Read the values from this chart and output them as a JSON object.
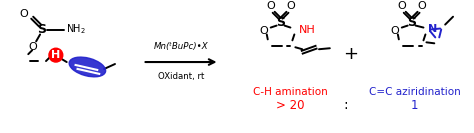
{
  "fig_width": 4.74,
  "fig_height": 1.33,
  "dpi": 100,
  "bg_color": "#ffffff",
  "label_ch_amination": "C-H amination",
  "label_cc_aziridination": "C=C aziridination",
  "label_ratio_left": "> 20",
  "label_colon": ":",
  "label_ratio_right": "1",
  "color_red": "#ff0000",
  "color_blue": "#2222cc",
  "color_black": "#000000",
  "reagent_line1": "Mn(ᵗBuPc)•X",
  "reagent_line2": "OXidant, rt",
  "arrow_color": "#000000"
}
